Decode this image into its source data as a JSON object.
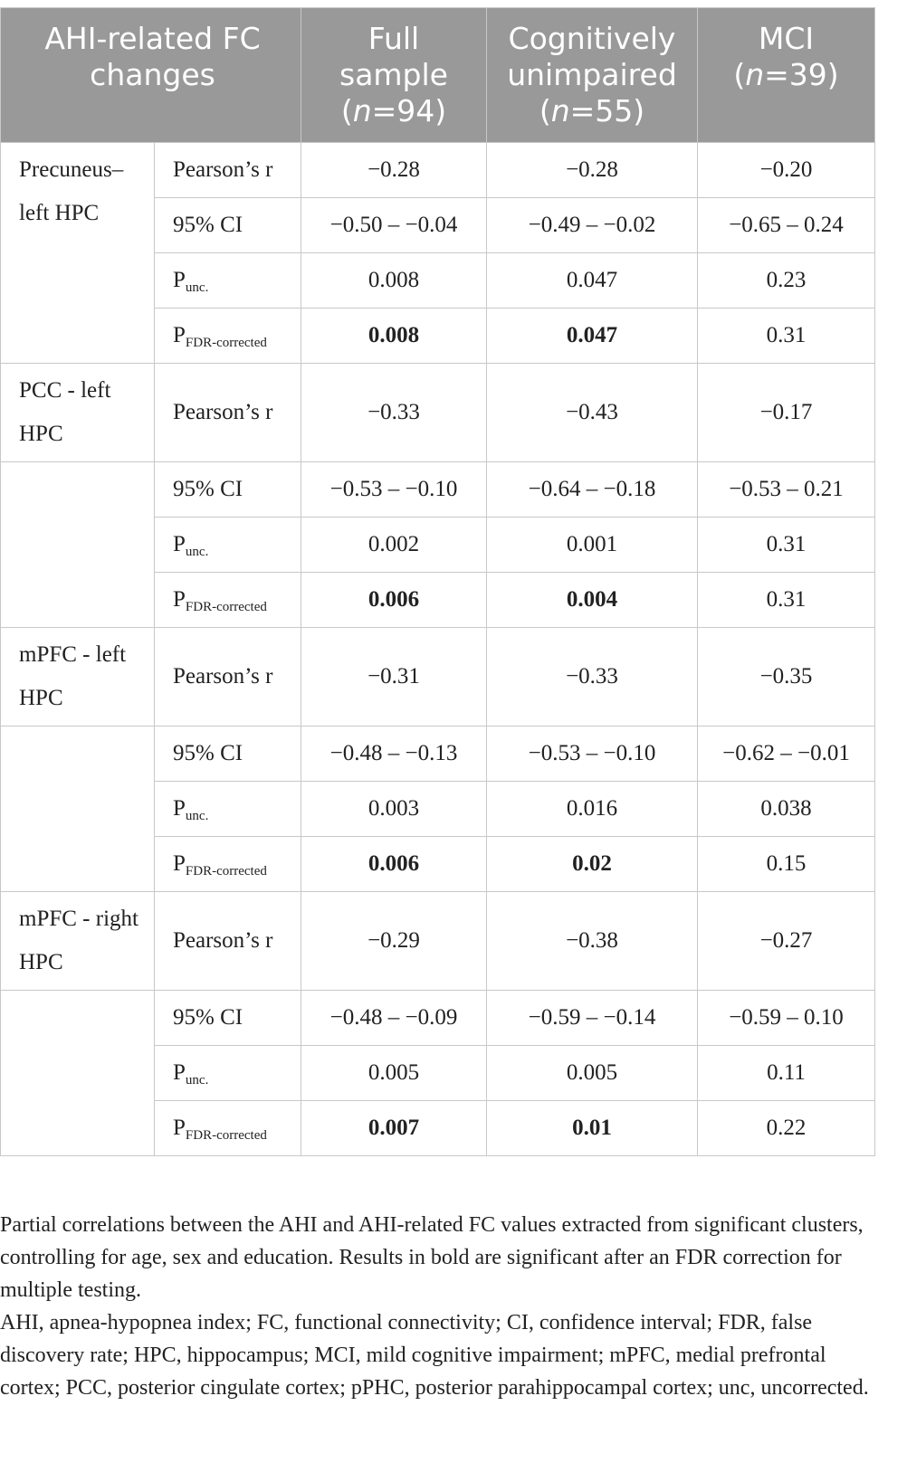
{
  "header": [
    {
      "lines": [
        "AHI-related FC",
        "changes"
      ]
    },
    {
      "lines": [
        "Full",
        "sample"
      ],
      "n_open": "(",
      "n_italic": "n",
      "n_rest": "=94)"
    },
    {
      "lines": [
        "Cognitively",
        "unimpaired"
      ],
      "n_open": "(",
      "n_italic": "n",
      "n_rest": "=55)"
    },
    {
      "lines": [
        "MCI"
      ],
      "n_open": "(",
      "n_italic": "n",
      "n_rest": "=39)"
    }
  ],
  "groups": [
    {
      "label": "Precuneus–left HPC",
      "label_spans_group": true,
      "rows": [
        {
          "stat": "Pearson’s r",
          "values": [
            "−0.28",
            "−0.28",
            "−0.20"
          ],
          "bold": [
            false,
            false,
            false
          ]
        },
        {
          "stat": "95% CI",
          "values": [
            "−0.50 – −0.04",
            "−0.49 – −0.02",
            "−0.65 – 0.24"
          ],
          "bold": [
            false,
            false,
            false
          ]
        },
        {
          "stat": "P",
          "sub": "unc.",
          "values": [
            "0.008",
            "0.047",
            "0.23"
          ],
          "bold": [
            false,
            false,
            false
          ]
        },
        {
          "stat": "P",
          "sub": "FDR-corrected",
          "values": [
            "0.008",
            "0.047",
            "0.31"
          ],
          "bold": [
            true,
            true,
            false
          ]
        }
      ]
    },
    {
      "label": "PCC - left HPC",
      "label_spans_group": false,
      "rows": [
        {
          "stat": "Pearson’s r",
          "values": [
            "−0.33",
            "−0.43",
            "−0.17"
          ],
          "bold": [
            false,
            false,
            false
          ]
        },
        {
          "stat": "95% CI",
          "values": [
            "−0.53 – −0.10",
            "−0.64 – −0.18",
            "−0.53 – 0.21"
          ],
          "bold": [
            false,
            false,
            false
          ]
        },
        {
          "stat": "P",
          "sub": "unc.",
          "values": [
            "0.002",
            "0.001",
            "0.31"
          ],
          "bold": [
            false,
            false,
            false
          ]
        },
        {
          "stat": "P",
          "sub": "FDR-corrected",
          "values": [
            "0.006",
            "0.004",
            "0.31"
          ],
          "bold": [
            true,
            true,
            false
          ]
        }
      ]
    },
    {
      "label": "mPFC - left HPC",
      "label_spans_group": false,
      "rows": [
        {
          "stat": "Pearson’s r",
          "values": [
            "−0.31",
            "−0.33",
            "−0.35"
          ],
          "bold": [
            false,
            false,
            false
          ]
        },
        {
          "stat": "95% CI",
          "values": [
            "−0.48 – −0.13",
            "−0.53 – −0.10",
            "−0.62 – −0.01"
          ],
          "bold": [
            false,
            false,
            false
          ]
        },
        {
          "stat": "P",
          "sub": "unc.",
          "values": [
            "0.003",
            "0.016",
            "0.038"
          ],
          "bold": [
            false,
            false,
            false
          ]
        },
        {
          "stat": "P",
          "sub": "FDR-corrected",
          "values": [
            "0.006",
            "0.02",
            "0.15"
          ],
          "bold": [
            true,
            true,
            false
          ]
        }
      ]
    },
    {
      "label": "mPFC - right HPC",
      "label_spans_group": false,
      "rows": [
        {
          "stat": "Pearson’s r",
          "values": [
            "−0.29",
            "−0.38",
            "−0.27"
          ],
          "bold": [
            false,
            false,
            false
          ]
        },
        {
          "stat": "95% CI",
          "values": [
            "−0.48 – −0.09",
            "−0.59 – −0.14",
            "−0.59 – 0.10"
          ],
          "bold": [
            false,
            false,
            false
          ]
        },
        {
          "stat": "P",
          "sub": "unc.",
          "values": [
            "0.005",
            "0.005",
            "0.11"
          ],
          "bold": [
            false,
            false,
            false
          ]
        },
        {
          "stat": "P",
          "sub": "FDR-corrected",
          "values": [
            "0.007",
            "0.01",
            "0.22"
          ],
          "bold": [
            true,
            true,
            false
          ]
        }
      ]
    }
  ],
  "footnotes": [
    "Partial correlations between the AHI and AHI-related FC values extracted from significant clusters, controlling for age, sex and education. Results in bold are significant after an FDR correction for multiple testing.",
    "AHI, apnea-hypopnea index; FC, functional connectivity; CI, confidence interval; FDR, false discovery rate; HPC, hippocampus; MCI, mild cognitive impairment; mPFC, medial prefrontal cortex; PCC, posterior cingulate cortex; pPHC, posterior parahippocampal cortex; unc, uncorrected."
  ]
}
